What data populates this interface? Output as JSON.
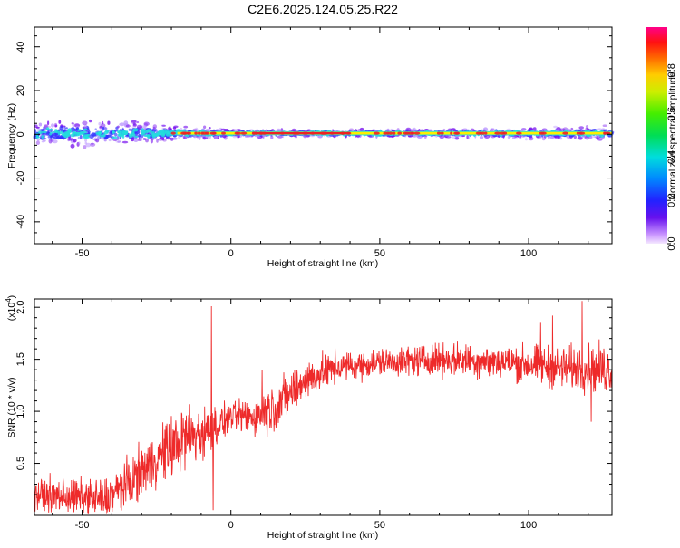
{
  "title": "C2E6.2025.124.05.25.R22",
  "colors": {
    "snr_line": "#ee2a2a",
    "axis": "#000000",
    "background": "#ffffff",
    "band_center": "#ee2222",
    "band_core": "#ffee00",
    "band_mid": "#22dddd",
    "band_outer": "#3333ff",
    "band_halo": "#7711ee"
  },
  "chart_data": [
    {
      "type": "heatmap",
      "name": "spectrogram",
      "xlabel": "Height of straight line (km)",
      "ylabel": "Frequency (Hz)",
      "xlim": [
        -66,
        128
      ],
      "ylim": [
        -50,
        49
      ],
      "xticks": [
        -50,
        0,
        50,
        100
      ],
      "xtick_labels": [
        "-50",
        "0",
        "50",
        "100"
      ],
      "yticks": [
        -40,
        -20,
        0,
        20,
        40
      ],
      "ytick_labels": [
        "-40",
        "-20",
        "0",
        "20",
        "40"
      ],
      "colorbar": {
        "label": "Normalized spectral amplitude",
        "ticks": [
          0.0,
          0.2,
          0.4,
          0.6,
          0.8
        ],
        "tick_labels": [
          "0.0",
          "0.2",
          "0.4",
          "0.6",
          "0.8"
        ],
        "range": [
          0,
          1
        ],
        "colormap": "rainbow"
      },
      "band": {
        "center_frequency_hz": 0.5,
        "halo_halfwidth_profile": [
          {
            "x": -66,
            "halfwidth": 5.5
          },
          {
            "x": -40,
            "halfwidth": 6
          },
          {
            "x": -20,
            "halfwidth": 3.5
          },
          {
            "x": 0,
            "halfwidth": 2
          },
          {
            "x": 20,
            "halfwidth": 1.6
          },
          {
            "x": 60,
            "halfwidth": 1.8
          },
          {
            "x": 90,
            "halfwidth": 2.2
          },
          {
            "x": 128,
            "halfwidth": 3.5
          }
        ]
      }
    },
    {
      "type": "line",
      "name": "snr",
      "xlabel": "Height of straight line (km)",
      "ylabel": "SNR (10 * v/v)",
      "multiplier_label": "(x10",
      "multiplier_exponent": "4",
      "xlim": [
        -66,
        128
      ],
      "ylim": [
        0,
        2.08
      ],
      "xticks": [
        -50,
        0,
        50,
        100
      ],
      "xtick_labels": [
        "-50",
        "0",
        "50",
        "100"
      ],
      "yticks": [
        0.5,
        1.0,
        1.5,
        2.0
      ],
      "ytick_labels": [
        "0.5",
        "1.0",
        "1.5",
        "2.0"
      ],
      "trend": [
        {
          "x": -66,
          "y": 0.2
        },
        {
          "x": -55,
          "y": 0.18
        },
        {
          "x": -42,
          "y": 0.15
        },
        {
          "x": -35,
          "y": 0.3
        },
        {
          "x": -25,
          "y": 0.55
        },
        {
          "x": -15,
          "y": 0.75
        },
        {
          "x": -8,
          "y": 0.8
        },
        {
          "x": 0,
          "y": 0.95
        },
        {
          "x": 8,
          "y": 0.95
        },
        {
          "x": 15,
          "y": 1.05
        },
        {
          "x": 25,
          "y": 1.3
        },
        {
          "x": 35,
          "y": 1.42
        },
        {
          "x": 50,
          "y": 1.47
        },
        {
          "x": 70,
          "y": 1.5
        },
        {
          "x": 90,
          "y": 1.48
        },
        {
          "x": 110,
          "y": 1.42
        },
        {
          "x": 128,
          "y": 1.4
        }
      ],
      "noise_amplitude": [
        {
          "x": -66,
          "a": 0.14
        },
        {
          "x": -30,
          "a": 0.22
        },
        {
          "x": -15,
          "a": 0.3
        },
        {
          "x": 0,
          "a": 0.12
        },
        {
          "x": 15,
          "a": 0.22
        },
        {
          "x": 40,
          "a": 0.12
        },
        {
          "x": 90,
          "a": 0.15
        },
        {
          "x": 128,
          "a": 0.22
        }
      ],
      "spikes": [
        {
          "x": -6.5,
          "y": 2.01
        },
        {
          "x": -6.0,
          "y": 0.05
        },
        {
          "x": 10.5,
          "y": 1.4
        },
        {
          "x": 104,
          "y": 1.85
        },
        {
          "x": 108,
          "y": 1.92
        },
        {
          "x": 118,
          "y": 2.06
        },
        {
          "x": 121,
          "y": 0.9
        }
      ]
    }
  ]
}
